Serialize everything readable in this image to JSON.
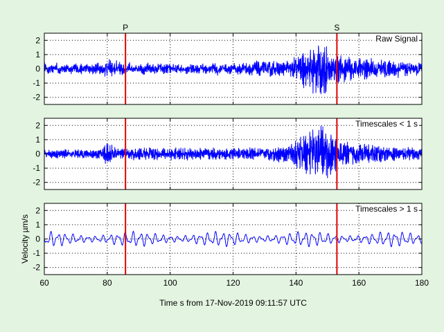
{
  "figure": {
    "background": "#e3f4e1"
  },
  "chart_data": {
    "type": "line",
    "x_range": [
      60,
      180
    ],
    "x_ticks": [
      60,
      80,
      100,
      120,
      140,
      160,
      180
    ],
    "xlabel": "Time s from 17-Nov-2019 09:11:57 UTC",
    "ylabel": "Velocity µm/s",
    "y_range": [
      -2.5,
      2.5
    ],
    "y_ticks": [
      -2,
      -1,
      0,
      1,
      2
    ],
    "grid": true,
    "signal_color": "#0000ff",
    "marker_color": "#e00000",
    "markers": [
      {
        "label": "P",
        "x": 85.8
      },
      {
        "label": "S",
        "x": 153.0
      }
    ],
    "panels": [
      {
        "title": "Raw Signal",
        "envelope": [
          [
            60,
            0.35
          ],
          [
            78,
            0.45
          ],
          [
            80,
            0.8
          ],
          [
            86,
            0.4
          ],
          [
            120,
            0.4
          ],
          [
            128,
            0.6
          ],
          [
            138,
            0.6
          ],
          [
            142,
            1.4
          ],
          [
            146,
            2.1
          ],
          [
            149,
            2.1
          ],
          [
            152,
            1.3
          ],
          [
            158,
            0.9
          ],
          [
            180,
            0.5
          ]
        ],
        "low_amp": 0.32,
        "high_amp": 0.7,
        "low_freq": 0.3
      },
      {
        "title": "Timescales < 1 s",
        "envelope": [
          [
            60,
            0.3
          ],
          [
            78,
            0.35
          ],
          [
            80,
            0.9
          ],
          [
            83,
            0.45
          ],
          [
            130,
            0.45
          ],
          [
            138,
            0.7
          ],
          [
            142,
            1.3
          ],
          [
            146,
            1.9
          ],
          [
            149,
            2.1
          ],
          [
            152,
            1.3
          ],
          [
            157,
            0.8
          ],
          [
            180,
            0.4
          ]
        ],
        "low_amp": 0,
        "high_amp": 0.85,
        "low_freq": 0.3
      },
      {
        "title": "Timescales > 1 s",
        "envelope": [
          [
            60,
            0.35
          ],
          [
            180,
            0.35
          ]
        ],
        "low_amp": 0.55,
        "high_amp": 0.03,
        "low_freq": 0.42
      }
    ]
  }
}
